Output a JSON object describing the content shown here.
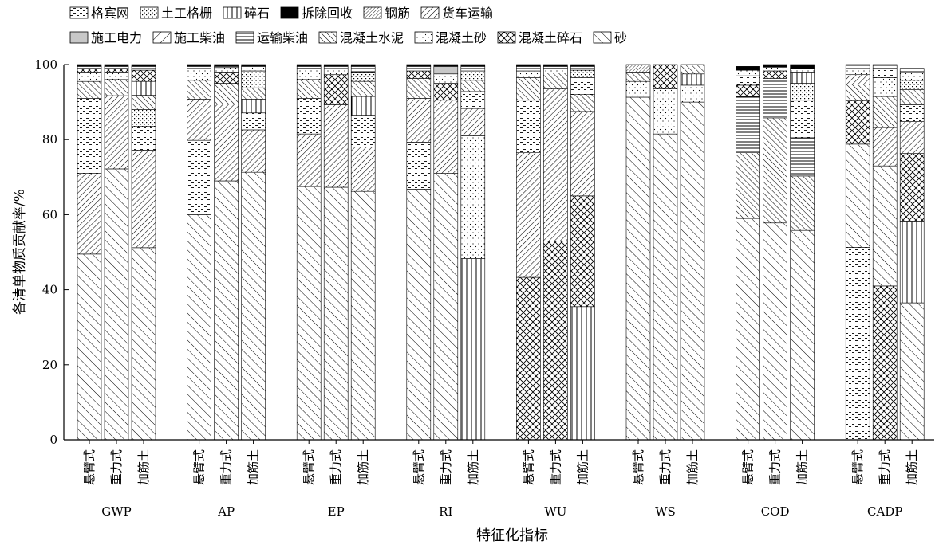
{
  "chart_data": {
    "type": "bar",
    "stacked": true,
    "ylabel": "各清单物质贡献率/%",
    "xlabel": "特征化指标",
    "ylim": [
      0,
      100
    ],
    "yticks": [
      0,
      20,
      40,
      60,
      80,
      100
    ],
    "legend_placement": "top-left",
    "groups": [
      "GWP",
      "AP",
      "EP",
      "RI",
      "WU",
      "WS",
      "COD",
      "CADP"
    ],
    "wall_types": [
      "悬臂式",
      "重力式",
      "加筋土"
    ],
    "legend": [
      {
        "name": "格宾网",
        "pattern": "gabion"
      },
      {
        "name": "土工格栅",
        "pattern": "geogrid"
      },
      {
        "name": "碎石",
        "pattern": "gravel"
      },
      {
        "name": "拆除回收",
        "pattern": "recycle"
      },
      {
        "name": "钢筋",
        "pattern": "rebar"
      },
      {
        "name": "货车运输",
        "pattern": "truck"
      },
      {
        "name": "施工电力",
        "pattern": "power"
      },
      {
        "name": "施工柴油",
        "pattern": "cdiesel"
      },
      {
        "name": "运输柴油",
        "pattern": "tdiesel"
      },
      {
        "name": "混凝土水泥",
        "pattern": "cement"
      },
      {
        "name": "混凝土砂",
        "pattern": "csand"
      },
      {
        "name": "混凝土碎石",
        "pattern": "cgravel"
      },
      {
        "name": "砂",
        "pattern": "sand"
      }
    ],
    "bars": [
      {
        "group": "GWP",
        "type": "悬臂式",
        "segments": [
          [
            "sand",
            49.5
          ],
          [
            "truck",
            21.5
          ],
          [
            "gabion",
            20
          ],
          [
            "cement",
            4.5
          ],
          [
            "csand",
            2.5
          ],
          [
            "cgravel",
            1
          ],
          [
            "tdiesel",
            0.5
          ],
          [
            "recycle",
            0.5
          ]
        ]
      },
      {
        "group": "GWP",
        "type": "重力式",
        "segments": [
          [
            "sand",
            72.2
          ],
          [
            "truck",
            19.5
          ],
          [
            "cement",
            4.3
          ],
          [
            "csand",
            2
          ],
          [
            "cgravel",
            1
          ],
          [
            "tdiesel",
            0.5
          ],
          [
            "recycle",
            0.5
          ]
        ]
      },
      {
        "group": "GWP",
        "type": "加筋土",
        "segments": [
          [
            "sand",
            51.2
          ],
          [
            "truck",
            26
          ],
          [
            "gabion",
            6.3
          ],
          [
            "geogrid",
            4.5
          ],
          [
            "cement",
            3.8
          ],
          [
            "gravel",
            3.7
          ],
          [
            "cgravel",
            3
          ],
          [
            "tdiesel",
            1
          ],
          [
            "recycle",
            0.5
          ]
        ]
      },
      {
        "group": "AP",
        "type": "悬臂式",
        "segments": [
          [
            "sand",
            60
          ],
          [
            "gabion",
            19.8
          ],
          [
            "truck",
            11
          ],
          [
            "cement",
            5
          ],
          [
            "csand",
            3
          ],
          [
            "tdiesel",
            0.7
          ],
          [
            "recycle",
            0.5
          ]
        ]
      },
      {
        "group": "AP",
        "type": "重力式",
        "segments": [
          [
            "sand",
            69
          ],
          [
            "truck",
            20.5
          ],
          [
            "cement",
            5.5
          ],
          [
            "cgravel",
            3
          ],
          [
            "csand",
            1.2
          ],
          [
            "tdiesel",
            0.3
          ],
          [
            "recycle",
            0.5
          ]
        ]
      },
      {
        "group": "AP",
        "type": "加筋土",
        "segments": [
          [
            "sand",
            71.3
          ],
          [
            "truck",
            11.3
          ],
          [
            "gabion",
            4.5
          ],
          [
            "gravel",
            3.7
          ],
          [
            "cement",
            3
          ],
          [
            "geogrid",
            4.5
          ],
          [
            "csand",
            1.2
          ],
          [
            "recycle",
            0.5
          ]
        ]
      },
      {
        "group": "EP",
        "type": "悬臂式",
        "segments": [
          [
            "sand",
            67.5
          ],
          [
            "truck",
            14
          ],
          [
            "gabion",
            9.5
          ],
          [
            "cement",
            5
          ],
          [
            "csand",
            3
          ],
          [
            "tdiesel",
            0.5
          ],
          [
            "recycle",
            0.5
          ]
        ]
      },
      {
        "group": "EP",
        "type": "重力式",
        "segments": [
          [
            "sand",
            67.3
          ],
          [
            "truck",
            22
          ],
          [
            "cgravel",
            8
          ],
          [
            "csand",
            1.5
          ],
          [
            "tdiesel",
            0.7
          ],
          [
            "recycle",
            0.5
          ]
        ]
      },
      {
        "group": "EP",
        "type": "加筋土",
        "segments": [
          [
            "sand",
            66.2
          ],
          [
            "truck",
            11.8
          ],
          [
            "gabion",
            8.5
          ],
          [
            "gravel",
            5
          ],
          [
            "cement",
            4
          ],
          [
            "geogrid",
            2.5
          ],
          [
            "tdiesel",
            1.5
          ],
          [
            "recycle",
            0.5
          ]
        ]
      },
      {
        "group": "RI",
        "type": "悬臂式",
        "segments": [
          [
            "sand",
            66.8
          ],
          [
            "gabion",
            12.5
          ],
          [
            "truck",
            11.7
          ],
          [
            "cement",
            5.3
          ],
          [
            "cgravel",
            2
          ],
          [
            "tdiesel",
            1.2
          ],
          [
            "recycle",
            0.5
          ]
        ]
      },
      {
        "group": "RI",
        "type": "重力式",
        "segments": [
          [
            "sand",
            71
          ],
          [
            "truck",
            19.5
          ],
          [
            "cgravel",
            4.5
          ],
          [
            "csand",
            2.5
          ],
          [
            "power",
            2
          ],
          [
            "recycle",
            0.5
          ]
        ]
      },
      {
        "group": "RI",
        "type": "加筋土",
        "segments": [
          [
            "gravel",
            48.3
          ],
          [
            "csand",
            32.7
          ],
          [
            "truck",
            7.3
          ],
          [
            "gabion",
            4.5
          ],
          [
            "cement",
            3
          ],
          [
            "geogrid",
            2.5
          ],
          [
            "tdiesel",
            1.2
          ],
          [
            "recycle",
            0.5
          ]
        ]
      },
      {
        "group": "WU",
        "type": "悬臂式",
        "segments": [
          [
            "cgravel",
            43.3
          ],
          [
            "truck",
            33.2
          ],
          [
            "gabion",
            14
          ],
          [
            "cement",
            6
          ],
          [
            "csand",
            1.8
          ],
          [
            "tdiesel",
            1.2
          ],
          [
            "recycle",
            0.5
          ]
        ]
      },
      {
        "group": "WU",
        "type": "重力式",
        "segments": [
          [
            "cgravel",
            53
          ],
          [
            "truck",
            40.5
          ],
          [
            "cement",
            4.3
          ],
          [
            "csand",
            1.2
          ],
          [
            "tdiesel",
            0.5
          ],
          [
            "recycle",
            0.5
          ]
        ]
      },
      {
        "group": "WU",
        "type": "加筋土",
        "segments": [
          [
            "gravel",
            35.5
          ],
          [
            "cgravel",
            29.5
          ],
          [
            "truck",
            22.5
          ],
          [
            "cement",
            4.5
          ],
          [
            "gabion",
            4.5
          ],
          [
            "geogrid",
            2
          ],
          [
            "tdiesel",
            1
          ],
          [
            "recycle",
            0.5
          ]
        ]
      },
      {
        "group": "WS",
        "type": "悬臂式",
        "segments": [
          [
            "sand",
            91.3
          ],
          [
            "csand",
            4.2
          ],
          [
            "cement",
            2.5
          ],
          [
            "rebar",
            2
          ]
        ]
      },
      {
        "group": "WS",
        "type": "重力式",
        "segments": [
          [
            "sand",
            81.5
          ],
          [
            "csand",
            12
          ],
          [
            "cgravel",
            6.5
          ]
        ]
      },
      {
        "group": "WS",
        "type": "加筋土",
        "segments": [
          [
            "sand",
            90
          ],
          [
            "csand",
            4.5
          ],
          [
            "gravel",
            3
          ],
          [
            "cement",
            2.5
          ]
        ]
      },
      {
        "group": "COD",
        "type": "悬臂式",
        "segments": [
          [
            "sand",
            59
          ],
          [
            "cement",
            17.5
          ],
          [
            "tdiesel",
            15
          ],
          [
            "cgravel",
            3
          ],
          [
            "gabion",
            2.5
          ],
          [
            "csand",
            1.5
          ],
          [
            "recycle",
            1
          ]
        ]
      },
      {
        "group": "COD",
        "type": "重力式",
        "segments": [
          [
            "sand",
            57.8
          ],
          [
            "cement",
            28
          ],
          [
            "tdiesel",
            10.5
          ],
          [
            "cgravel",
            2
          ],
          [
            "csand",
            1
          ],
          [
            "recycle",
            0.7
          ]
        ]
      },
      {
        "group": "COD",
        "type": "加筋土",
        "segments": [
          [
            "sand",
            55.8
          ],
          [
            "cement",
            14.5
          ],
          [
            "tdiesel",
            10.2
          ],
          [
            "gabion",
            10
          ],
          [
            "geogrid",
            4.5
          ],
          [
            "gravel",
            3
          ],
          [
            "csand",
            1
          ],
          [
            "recycle",
            1
          ]
        ]
      },
      {
        "group": "CADP",
        "type": "悬臂式",
        "segments": [
          [
            "gabion",
            51.3
          ],
          [
            "sand",
            27.5
          ],
          [
            "cgravel",
            11.5
          ],
          [
            "cement",
            4.5
          ],
          [
            "truck",
            2.5
          ],
          [
            "csand",
            1.5
          ],
          [
            "tdiesel",
            1.2
          ]
        ]
      },
      {
        "group": "CADP",
        "type": "重力式",
        "segments": [
          [
            "cgravel",
            41
          ],
          [
            "sand",
            32
          ],
          [
            "truck",
            10.2
          ],
          [
            "cement",
            8.3
          ],
          [
            "csand",
            5
          ],
          [
            "gabion",
            2.5
          ],
          [
            "tdiesel",
            1
          ]
        ]
      },
      {
        "group": "CADP",
        "type": "加筋土",
        "segments": [
          [
            "sand",
            36.5
          ],
          [
            "gravel",
            21.8
          ],
          [
            "cgravel",
            18
          ],
          [
            "truck",
            8.5
          ],
          [
            "gabion",
            4.5
          ],
          [
            "cement",
            4
          ],
          [
            "geogrid",
            2.5
          ],
          [
            "csand",
            2
          ],
          [
            "tdiesel",
            1.2
          ]
        ]
      }
    ]
  }
}
